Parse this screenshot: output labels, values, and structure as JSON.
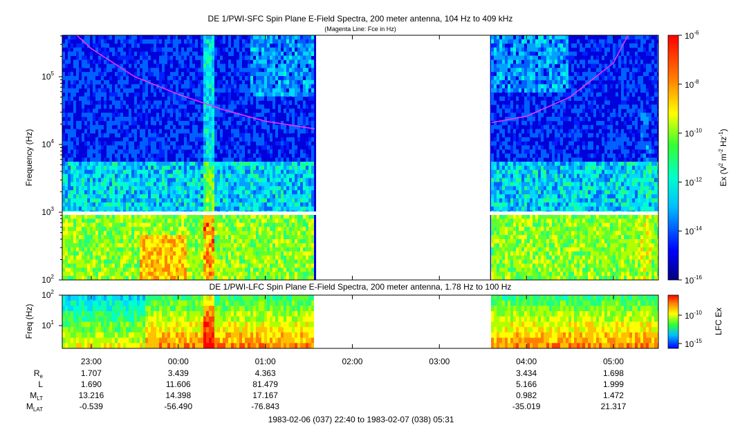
{
  "chart_data": [
    {
      "type": "heatmap",
      "title": "DE 1/PWI-SFC  Spin Plane E-Field Spectra, 200 meter antenna, 104 Hz to 409 kHz",
      "subtitle": "(Magenta Line: Fce in Hz)",
      "ylabel": "Frequency (Hz)",
      "yscale": "log",
      "ylim": [
        100,
        409000
      ],
      "y_ticks": [
        {
          "value": 100,
          "base": "10",
          "exp": "2"
        },
        {
          "value": 1000,
          "base": "10",
          "exp": "3"
        },
        {
          "value": 10000,
          "base": "10",
          "exp": "4"
        },
        {
          "value": 100000,
          "base": "10",
          "exp": "5"
        }
      ],
      "colorbar": {
        "label_main": "Ex (V",
        "label_sup1": "2",
        "label_mid": " m",
        "label_sup2": "-2",
        "label_mid2": " Hz",
        "label_sup3": "-1",
        "label_end": ")",
        "scale": "log",
        "range": [
          1e-16,
          1e-06
        ],
        "ticks": [
          {
            "value": 1e-06,
            "base": "10",
            "exp": "-6"
          },
          {
            "value": 1e-08,
            "base": "10",
            "exp": "-8"
          },
          {
            "value": 1e-10,
            "base": "10",
            "exp": "-10"
          },
          {
            "value": 1e-12,
            "base": "10",
            "exp": "-12"
          },
          {
            "value": 1e-14,
            "base": "10",
            "exp": "-14"
          },
          {
            "value": 1e-16,
            "base": "10",
            "exp": "-16"
          }
        ]
      },
      "data_gaps": [
        [
          "01:35",
          "03:35"
        ]
      ],
      "fce_line": {
        "color": "#ff33ff",
        "segments": [
          [
            [
              "22:50",
              409000
            ],
            [
              "23:00",
              260000
            ],
            [
              "23:30",
              100000
            ],
            [
              "00:00",
              55000
            ],
            [
              "00:30",
              33000
            ],
            [
              "01:00",
              22000
            ],
            [
              "01:34",
              17000
            ]
          ],
          [
            [
              "03:36",
              21000
            ],
            [
              "04:00",
              26000
            ],
            [
              "04:30",
              50000
            ],
            [
              "05:00",
              160000
            ],
            [
              "05:10",
              409000
            ]
          ]
        ]
      }
    },
    {
      "type": "heatmap",
      "title": "DE 1/PWI-LFC  Spin Plane E-Field Spectra, 200 meter antenna, 1.78 Hz to 100 Hz",
      "ylabel": "Freq (Hz)",
      "yscale": "log",
      "ylim": [
        1.78,
        100
      ],
      "y_ticks": [
        {
          "value": 10,
          "base": "10",
          "exp": "1"
        },
        {
          "value": 100,
          "base": "10",
          "exp": "2"
        }
      ],
      "colorbar": {
        "label": "LFC Ex",
        "scale": "log",
        "ticks": [
          {
            "value": 1e-10,
            "base": "10",
            "exp": "-10"
          },
          {
            "value": 1e-15,
            "base": "10",
            "exp": "-15"
          }
        ]
      },
      "data_gaps": [
        [
          "01:35",
          "03:35"
        ]
      ]
    }
  ],
  "time_axis": {
    "start": "22:40",
    "end": "05:31",
    "ticks": [
      "23:00",
      "00:00",
      "01:00",
      "02:00",
      "03:00",
      "04:00",
      "05:00"
    ]
  },
  "ephemeris": {
    "rows": [
      {
        "label": "R",
        "sub": "e",
        "values": [
          "1.707",
          "3.439",
          "4.363",
          "",
          "",
          "3.434",
          "1.698"
        ]
      },
      {
        "label": "L",
        "sub": "",
        "values": [
          "1.690",
          "11.606",
          "81.479",
          "",
          "",
          "5.166",
          "1.999"
        ]
      },
      {
        "label": "M",
        "sub": "LT",
        "values": [
          "13.216",
          "14.398",
          "17.167",
          "",
          "",
          "0.982",
          "1.472"
        ]
      },
      {
        "label": "M",
        "sub": "LAT",
        "values": [
          "-0.539",
          "-56.490",
          "-76.843",
          "",
          "",
          "-35.019",
          "21.317"
        ]
      }
    ]
  },
  "date_range": "1983-02-06 (037) 22:40 to 1983-02-07 (038) 05:31"
}
